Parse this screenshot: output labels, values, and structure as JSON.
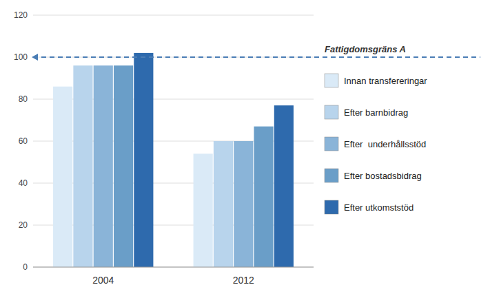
{
  "chart_data": {
    "type": "bar",
    "categories": [
      "2004",
      "2012"
    ],
    "series": [
      {
        "name": "Innan transfereringar",
        "color": "#daeaf7",
        "values": [
          86,
          54
        ]
      },
      {
        "name": "Efter barnbidrag",
        "color": "#b8d4ec",
        "values": [
          96,
          60
        ]
      },
      {
        "name": "Efter  underhållsstöd",
        "color": "#8ab4d8",
        "values": [
          96,
          60
        ]
      },
      {
        "name": "Efter bostadsbidrag",
        "color": "#6a9ec8",
        "values": [
          96,
          67
        ]
      },
      {
        "name": "Efter utkomststöd",
        "color": "#2e6aad",
        "values": [
          102,
          77
        ]
      }
    ],
    "ylim": [
      0,
      120
    ],
    "yticks": [
      0,
      20,
      40,
      60,
      80,
      100,
      120
    ],
    "grid": true,
    "legend": "right",
    "annotations": [
      {
        "text": "Fattigdomsgräns A",
        "y": 100,
        "color": "#4a7db5"
      }
    ]
  }
}
